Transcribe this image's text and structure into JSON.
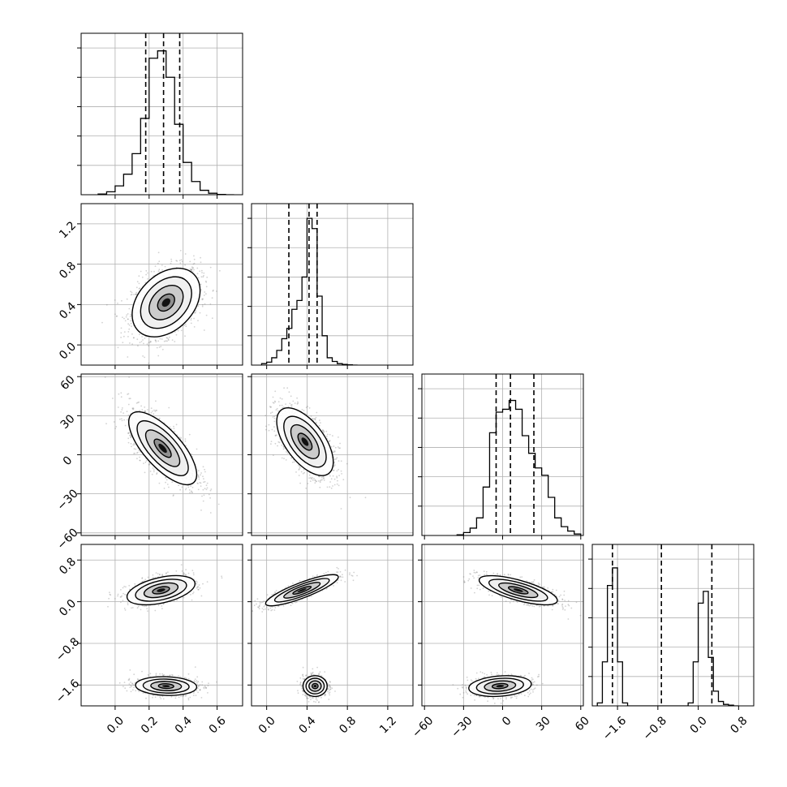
{
  "figure": {
    "type": "corner-plot",
    "grid": true,
    "colors": {
      "frame": "#000000",
      "grid": "#b0b0b0",
      "scatter": "#7f7f7f",
      "contour": "#000000"
    }
  },
  "chart_data": [
    {
      "type": "bar",
      "subtype": "histogram",
      "row": 0,
      "col": 0,
      "xlim": [
        -0.2,
        0.75
      ],
      "ylim": [
        0,
        1.1
      ],
      "bins": [
        -0.1,
        -0.05,
        0.0,
        0.05,
        0.1,
        0.15,
        0.2,
        0.25,
        0.3,
        0.35,
        0.4,
        0.45,
        0.5,
        0.55,
        0.6,
        0.65,
        0.7
      ],
      "counts": [
        0.005,
        0.02,
        0.06,
        0.14,
        0.28,
        0.52,
        0.93,
        0.98,
        0.8,
        0.48,
        0.22,
        0.09,
        0.03,
        0.01,
        0.002,
        0.0
      ],
      "quantile_lines": [
        0.18,
        0.285,
        0.38
      ],
      "x_ticks": [],
      "y_ticks": []
    },
    {
      "type": "scatter",
      "subtype": "2d-density",
      "row": 1,
      "col": 0,
      "xlim": [
        -0.2,
        0.75
      ],
      "ylim": [
        -0.2,
        1.4
      ],
      "center": [
        0.3,
        0.42
      ],
      "spread": [
        0.1,
        0.17
      ],
      "correlation": 0.35,
      "x_ticks": [],
      "y_ticks": [
        "0.0",
        "0.4",
        "0.8",
        "1.2"
      ]
    },
    {
      "type": "bar",
      "subtype": "histogram",
      "row": 1,
      "col": 1,
      "xlim": [
        -0.15,
        1.45
      ],
      "ylim": [
        0,
        1.1
      ],
      "bins": [
        -0.05,
        0.0,
        0.05,
        0.1,
        0.15,
        0.2,
        0.25,
        0.3,
        0.35,
        0.4,
        0.45,
        0.5,
        0.55,
        0.6,
        0.65,
        0.7,
        0.75,
        0.8,
        0.85,
        0.9
      ],
      "counts": [
        0.01,
        0.02,
        0.05,
        0.1,
        0.18,
        0.25,
        0.38,
        0.44,
        0.6,
        1.0,
        0.93,
        0.47,
        0.2,
        0.05,
        0.025,
        0.01,
        0.005,
        0.002,
        0.0
      ],
      "quantile_lines": [
        0.22,
        0.42,
        0.5
      ],
      "x_ticks": [],
      "y_ticks": []
    },
    {
      "type": "scatter",
      "subtype": "2d-density",
      "row": 2,
      "col": 0,
      "xlim": [
        -0.2,
        0.75
      ],
      "ylim": [
        -62,
        62
      ],
      "center": [
        0.28,
        5
      ],
      "spread": [
        0.1,
        14
      ],
      "correlation": -0.72,
      "x_ticks": [],
      "y_ticks": [
        "−60",
        "−30",
        "0",
        "30",
        "60"
      ]
    },
    {
      "type": "scatter",
      "subtype": "2d-density",
      "row": 2,
      "col": 1,
      "xlim": [
        -0.15,
        1.45
      ],
      "ylim": [
        -62,
        62
      ],
      "center": [
        0.38,
        10
      ],
      "spread": [
        0.14,
        13
      ],
      "correlation": -0.6,
      "x_ticks": [],
      "y_ticks": []
    },
    {
      "type": "bar",
      "subtype": "histogram",
      "row": 2,
      "col": 2,
      "xlim": [
        -62,
        62
      ],
      "ylim": [
        0,
        1.1
      ],
      "bins": [
        -35,
        -30,
        -25,
        -20,
        -15,
        -10,
        -5,
        0,
        5,
        10,
        15,
        20,
        25,
        30,
        35,
        40,
        45,
        50,
        55,
        60
      ],
      "counts": [
        0.005,
        0.02,
        0.05,
        0.12,
        0.33,
        0.7,
        0.84,
        0.86,
        0.92,
        0.86,
        0.68,
        0.56,
        0.46,
        0.41,
        0.26,
        0.12,
        0.06,
        0.03,
        0.01
      ],
      "quantile_lines": [
        -5,
        6,
        24
      ],
      "x_ticks": [],
      "y_ticks": []
    },
    {
      "type": "scatter",
      "subtype": "2d-density",
      "row": 3,
      "col": 0,
      "xlim": [
        -0.2,
        0.75
      ],
      "ylim": [
        -2.0,
        1.1
      ],
      "clusters": [
        {
          "center": [
            0.27,
            0.22
          ],
          "spread": [
            0.1,
            0.14
          ],
          "correlation": 0.45
        },
        {
          "center": [
            0.3,
            -1.62
          ],
          "spread": [
            0.09,
            0.09
          ],
          "correlation": -0.1
        }
      ],
      "x_ticks": [
        "0.0",
        "0.2",
        "0.4",
        "0.6"
      ],
      "y_ticks": [
        "−1.6",
        "−0.8",
        "0.0",
        "0.8"
      ]
    },
    {
      "type": "scatter",
      "subtype": "2d-density",
      "row": 3,
      "col": 1,
      "xlim": [
        -0.15,
        1.45
      ],
      "ylim": [
        -2.0,
        1.1
      ],
      "clusters": [
        {
          "center": [
            0.35,
            0.22
          ],
          "spread": [
            0.18,
            0.15
          ],
          "correlation": 0.85
        },
        {
          "center": [
            0.48,
            -1.62
          ],
          "spread": [
            0.06,
            0.1
          ],
          "correlation": 0.0
        }
      ],
      "x_ticks": [
        "0.0",
        "0.4",
        "0.8",
        "1.2"
      ],
      "y_ticks": []
    },
    {
      "type": "scatter",
      "subtype": "2d-density",
      "row": 3,
      "col": 2,
      "xlim": [
        -62,
        62
      ],
      "ylim": [
        -2.0,
        1.1
      ],
      "clusters": [
        {
          "center": [
            12,
            0.22
          ],
          "spread": [
            15,
            0.14
          ],
          "correlation": -0.7
        },
        {
          "center": [
            -2,
            -1.62
          ],
          "spread": [
            12,
            0.1
          ],
          "correlation": 0.2
        }
      ],
      "x_ticks": [
        "−60",
        "−30",
        "0",
        "30",
        "60"
      ],
      "y_ticks": []
    },
    {
      "type": "bar",
      "subtype": "histogram",
      "row": 3,
      "col": 3,
      "xlim": [
        -2.1,
        1.1
      ],
      "ylim": [
        0,
        1.1
      ],
      "bins": [
        -2.0,
        -1.9,
        -1.8,
        -1.7,
        -1.6,
        -1.5,
        -1.4,
        -1.3,
        -1.2,
        -1.1,
        -1.0,
        -0.9,
        -0.8,
        -0.7,
        -0.6,
        -0.5,
        -0.4,
        -0.3,
        -0.2,
        -0.1,
        0.0,
        0.1,
        0.2,
        0.3,
        0.4,
        0.5,
        0.6,
        0.7,
        0.8
      ],
      "counts": [
        0.02,
        0.3,
        0.82,
        0.94,
        0.3,
        0.02,
        0,
        0,
        0,
        0,
        0,
        0,
        0,
        0,
        0,
        0,
        0,
        0,
        0.02,
        0.3,
        0.7,
        0.78,
        0.33,
        0.1,
        0.03,
        0.01,
        0.005,
        0.0
      ],
      "quantile_lines": [
        -1.7,
        -0.73,
        0.27
      ],
      "x_ticks": [
        "−1.6",
        "−0.8",
        "0.0",
        "0.8"
      ],
      "y_ticks": []
    }
  ]
}
